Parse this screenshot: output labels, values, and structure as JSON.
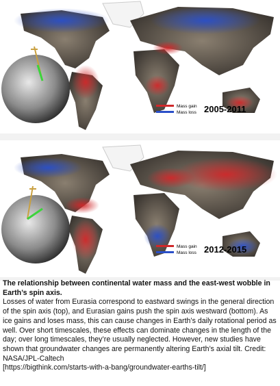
{
  "panels": [
    {
      "legend_gain": "Mass gain",
      "legend_loss": "Mass loss",
      "period": "2005-2011"
    },
    {
      "legend_gain": "Mass gain",
      "legend_loss": "Mass loss",
      "period": "2012-2015"
    }
  ],
  "caption": {
    "title": "The relationship between continental water mass and the east-west wobble in Earth’s spin axis.",
    "body": "Losses of water from Eurasia correspond to eastward swings in the general direction of the spin axis (top), and Eurasian gains push the spin axis westward (bottom). As ice gains and loses mass, this can cause changes in Earth’s daily rotational period as well. Over short timescales, these effects can dominate changes in the length of the day; over long timescales, they’re usually neglected. However, new studies have shown that groundwater changes are permanently altering Earth’s axial tilt. Credit: NASA/JPL-Caltech",
    "link": "[https://bigthink.com/starts-with-a-bang/groundwater-earths-tilt/]"
  }
}
